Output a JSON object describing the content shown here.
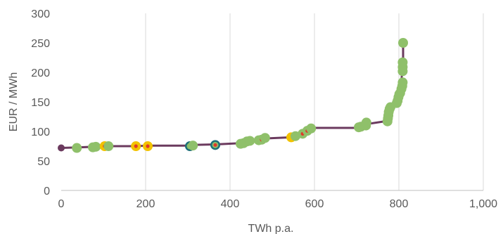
{
  "chart_data": {
    "type": "scatter",
    "title": "",
    "xlabel": "TWh p.a.",
    "ylabel": "EUR / MWh",
    "xlim": [
      0,
      1000
    ],
    "ylim": [
      0,
      300
    ],
    "x_ticks": [
      0,
      200,
      400,
      600,
      800,
      1000
    ],
    "x_tick_labels": [
      "0",
      "200",
      "400",
      "600",
      "800",
      "1,000"
    ],
    "y_ticks": [
      0,
      50,
      100,
      150,
      200,
      250,
      300
    ],
    "y_tick_labels": [
      "0",
      "50",
      "100",
      "150",
      "200",
      "250",
      "300"
    ],
    "grid": {
      "vertical": true,
      "horizontal": false
    },
    "colors": {
      "curve": "#6b3a5e",
      "green": "#8fc06a",
      "yellow": "#f2c200",
      "teal": "#1e6f78",
      "dark": "#6b3a5e",
      "red_dot": "#e0392b"
    },
    "curve": {
      "x": [
        0,
        40,
        80,
        110,
        175,
        205,
        305,
        310,
        365,
        425,
        440,
        470,
        480,
        545,
        550,
        575,
        585,
        590,
        700,
        705,
        720,
        775,
        780,
        795,
        800,
        805,
        810,
        810
      ],
      "y": [
        72,
        73,
        74,
        75,
        75,
        76,
        76,
        77,
        78,
        80,
        83,
        85,
        88,
        90,
        93,
        97,
        100,
        106,
        106,
        108,
        112,
        118,
        140,
        150,
        165,
        180,
        215,
        250
      ]
    },
    "points": [
      {
        "x": 0,
        "y": 72,
        "style": "dark"
      },
      {
        "x": 37,
        "y": 72,
        "style": "green"
      },
      {
        "x": 75,
        "y": 73,
        "style": "green"
      },
      {
        "x": 82,
        "y": 74,
        "style": "green"
      },
      {
        "x": 103,
        "y": 75,
        "style": "yellow-red"
      },
      {
        "x": 112,
        "y": 75,
        "style": "green"
      },
      {
        "x": 177,
        "y": 75,
        "style": "yellow-red"
      },
      {
        "x": 205,
        "y": 75,
        "style": "yellow-red"
      },
      {
        "x": 305,
        "y": 75,
        "style": "teal-red"
      },
      {
        "x": 312,
        "y": 76,
        "style": "green"
      },
      {
        "x": 365,
        "y": 77,
        "style": "teal-red"
      },
      {
        "x": 425,
        "y": 79,
        "style": "green"
      },
      {
        "x": 432,
        "y": 80,
        "style": "green"
      },
      {
        "x": 440,
        "y": 83,
        "style": "green-red"
      },
      {
        "x": 447,
        "y": 84,
        "style": "green"
      },
      {
        "x": 468,
        "y": 85,
        "style": "green"
      },
      {
        "x": 475,
        "y": 86,
        "style": "green-red"
      },
      {
        "x": 483,
        "y": 89,
        "style": "green"
      },
      {
        "x": 545,
        "y": 90,
        "style": "yellow"
      },
      {
        "x": 555,
        "y": 92,
        "style": "green"
      },
      {
        "x": 572,
        "y": 96,
        "style": "green-red"
      },
      {
        "x": 583,
        "y": 101,
        "style": "green-red"
      },
      {
        "x": 592,
        "y": 105,
        "style": "green"
      },
      {
        "x": 705,
        "y": 107,
        "style": "green"
      },
      {
        "x": 710,
        "y": 108,
        "style": "green"
      },
      {
        "x": 722,
        "y": 110,
        "style": "green"
      },
      {
        "x": 723,
        "y": 115,
        "style": "green"
      },
      {
        "x": 773,
        "y": 117,
        "style": "green"
      },
      {
        "x": 774,
        "y": 122,
        "style": "green"
      },
      {
        "x": 775,
        "y": 127,
        "style": "green"
      },
      {
        "x": 776,
        "y": 133,
        "style": "green"
      },
      {
        "x": 778,
        "y": 138,
        "style": "green"
      },
      {
        "x": 780,
        "y": 141,
        "style": "green"
      },
      {
        "x": 795,
        "y": 148,
        "style": "green"
      },
      {
        "x": 797,
        "y": 152,
        "style": "green"
      },
      {
        "x": 799,
        "y": 158,
        "style": "green"
      },
      {
        "x": 801,
        "y": 163,
        "style": "green"
      },
      {
        "x": 803,
        "y": 165,
        "style": "green"
      },
      {
        "x": 806,
        "y": 172,
        "style": "green"
      },
      {
        "x": 808,
        "y": 177,
        "style": "green"
      },
      {
        "x": 809,
        "y": 183,
        "style": "green"
      },
      {
        "x": 809,
        "y": 202,
        "style": "green"
      },
      {
        "x": 809,
        "y": 209,
        "style": "green"
      },
      {
        "x": 809,
        "y": 217,
        "style": "green"
      },
      {
        "x": 810,
        "y": 250,
        "style": "green"
      }
    ]
  }
}
